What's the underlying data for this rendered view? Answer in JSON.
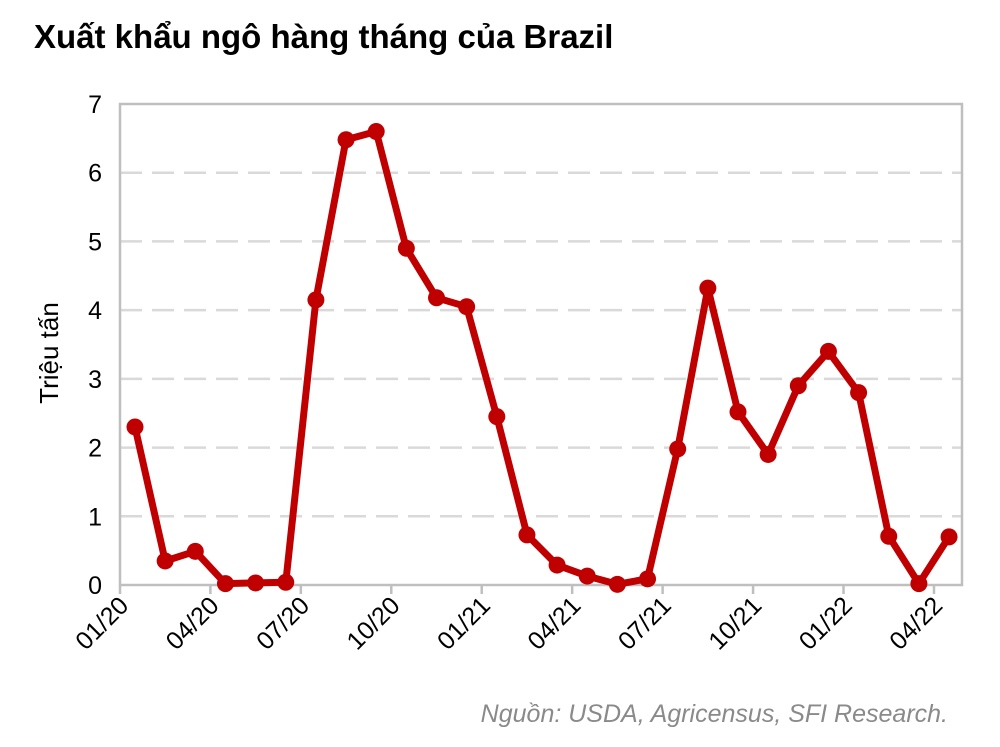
{
  "title": "Xuất khẩu ngô hàng tháng của Brazil",
  "source": "Nguồn: USDA, Agricensus, SFI Research.",
  "colors": {
    "series": "#c00000",
    "grid": "#d9d9d9",
    "frame": "#bfbfbf"
  },
  "chart_data": {
    "type": "line",
    "title": "Xuất khẩu ngô hàng tháng của Brazil",
    "xlabel": "",
    "ylabel": "Triệu tấn",
    "ylim": [
      0,
      7
    ],
    "yticks": [
      0,
      1,
      2,
      3,
      4,
      5,
      6,
      7
    ],
    "grid": true,
    "legend": "none",
    "xticks": [
      "01/20",
      "04/20",
      "07/20",
      "10/20",
      "01/21",
      "04/21",
      "07/21",
      "10/21",
      "01/22",
      "04/22"
    ],
    "x": [
      "01/20",
      "02/20",
      "03/20",
      "04/20",
      "05/20",
      "06/20",
      "07/20",
      "08/20",
      "09/20",
      "10/20",
      "11/20",
      "12/20",
      "01/21",
      "02/21",
      "03/21",
      "04/21",
      "05/21",
      "06/21",
      "07/21",
      "08/21",
      "09/21",
      "10/21",
      "11/21",
      "12/21",
      "01/22",
      "02/22",
      "03/22",
      "04/22"
    ],
    "series": [
      {
        "values": [
          2.3,
          0.35,
          0.49,
          0.02,
          0.03,
          0.04,
          4.15,
          6.48,
          6.6,
          4.9,
          4.18,
          4.05,
          2.45,
          0.73,
          0.29,
          0.13,
          0.01,
          0.09,
          1.98,
          4.32,
          2.52,
          1.9,
          2.9,
          3.4,
          2.8,
          0.71,
          0.02,
          0.7
        ]
      }
    ]
  }
}
